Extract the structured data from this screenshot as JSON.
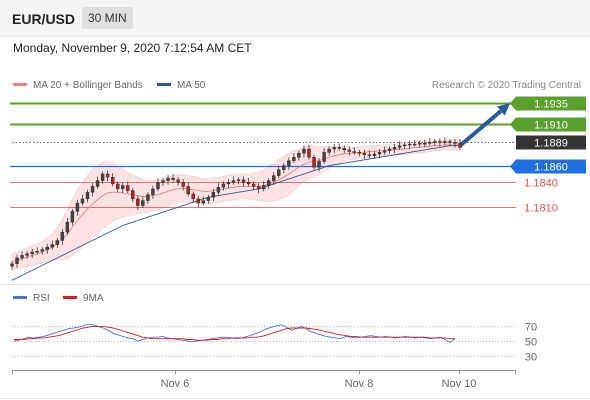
{
  "header": {
    "pair": "EUR/USD",
    "timeframe": "30 MIN"
  },
  "date_text": "Monday, November 9, 2020 7:12:54 AM CET",
  "legend": {
    "ma20": {
      "label": "MA 20 + Bollinger Bands",
      "color": "#f08080"
    },
    "ma50": {
      "label": "MA 50",
      "color": "#2b5a9a"
    }
  },
  "credit": "Research © 2020 Trading Central",
  "rsi_legend": {
    "rsi": "RSI",
    "ma9": "9MA"
  },
  "chart_data": {
    "type": "line",
    "price_range": [
      1.172,
      1.1945
    ],
    "current_price": {
      "value": 1.1889,
      "label": "1.1889"
    },
    "levels": [
      {
        "value": 1.1935,
        "label": "1.1935",
        "kind": "resistance",
        "color": "#5aa02c"
      },
      {
        "value": 1.191,
        "label": "1.1910",
        "kind": "resistance",
        "color": "#5aa02c"
      },
      {
        "value": 1.186,
        "label": "1.1860",
        "kind": "pivot",
        "color": "#1f6fe0"
      },
      {
        "value": 1.184,
        "label": "1.1840",
        "kind": "support",
        "color": "#e05050"
      },
      {
        "value": 1.181,
        "label": "1.1810",
        "kind": "support",
        "color": "#e05050"
      }
    ],
    "x_ticks": [
      "Nov 6",
      "Nov 8",
      "Nov 10"
    ],
    "close": [
      1.1742,
      1.1749,
      1.1752,
      1.1754,
      1.1756,
      1.1757,
      1.1759,
      1.1762,
      1.1765,
      1.177,
      1.178,
      1.1792,
      1.1805,
      1.1815,
      1.182,
      1.1828,
      1.1835,
      1.1842,
      1.185,
      1.1846,
      1.1838,
      1.1832,
      1.1836,
      1.183,
      1.182,
      1.1812,
      1.1818,
      1.1825,
      1.1832,
      1.184,
      1.1842,
      1.1845,
      1.1843,
      1.184,
      1.1835,
      1.1826,
      1.182,
      1.1815,
      1.1818,
      1.1822,
      1.1828,
      1.1834,
      1.1838,
      1.184,
      1.1842,
      1.1843,
      1.184,
      1.1838,
      1.1835,
      1.1832,
      1.1836,
      1.1842,
      1.1848,
      1.1855,
      1.186,
      1.1866,
      1.187,
      1.1875,
      1.188,
      1.187,
      1.1858,
      1.1865,
      1.1876,
      1.188,
      1.1882,
      1.1881,
      1.1879,
      1.1877,
      1.1876,
      1.1875,
      1.1873,
      1.1872,
      1.1874,
      1.1876,
      1.1878,
      1.188,
      1.1882,
      1.1884,
      1.1885,
      1.1886,
      1.1886,
      1.1887,
      1.1887,
      1.1888,
      1.1889,
      1.1888,
      1.1889,
      1.1888,
      1.1887,
      1.1882
    ],
    "ma20": [
      1.1744,
      1.1746,
      1.1748,
      1.175,
      1.1752,
      1.1754,
      1.1756,
      1.1759,
      1.1762,
      1.1766,
      1.1771,
      1.1778,
      1.1786,
      1.1794,
      1.1801,
      1.1808,
      1.1814,
      1.1819,
      1.1824,
      1.1827,
      1.1828,
      1.1828,
      1.1827,
      1.1826,
      1.1825,
      1.1824,
      1.1823,
      1.1823,
      1.1824,
      1.1825,
      1.1827,
      1.1829,
      1.1831,
      1.1832,
      1.1833,
      1.1832,
      1.1831,
      1.183,
      1.1829,
      1.1829,
      1.183,
      1.1831,
      1.1832,
      1.1833,
      1.1834,
      1.1835,
      1.1835,
      1.1835,
      1.1835,
      1.1835,
      1.1836,
      1.1838,
      1.184,
      1.1843,
      1.1846,
      1.185,
      1.1854,
      1.1858,
      1.1862,
      1.1864,
      1.1865,
      1.1866,
      1.1868,
      1.187,
      1.1872,
      1.1873,
      1.1874,
      1.1875,
      1.1875,
      1.1876,
      1.1876,
      1.1877,
      1.1877,
      1.1878,
      1.1878,
      1.1879,
      1.1879,
      1.188,
      1.188,
      1.1881,
      1.1882,
      1.1882,
      1.1883,
      1.1883,
      1.1884,
      1.1884,
      1.1885,
      1.1885,
      1.1885,
      1.1885
    ],
    "bb_width": [
      0.001,
      0.001,
      0.0011,
      0.0011,
      0.0012,
      0.0012,
      0.0013,
      0.0014,
      0.0016,
      0.0019,
      0.0024,
      0.003,
      0.0034,
      0.0037,
      0.0039,
      0.004,
      0.0041,
      0.0041,
      0.004,
      0.0038,
      0.0035,
      0.0032,
      0.0029,
      0.0026,
      0.0024,
      0.0022,
      0.002,
      0.0019,
      0.0018,
      0.0018,
      0.0017,
      0.0017,
      0.0017,
      0.0017,
      0.0016,
      0.0016,
      0.0016,
      0.0016,
      0.0015,
      0.0015,
      0.0015,
      0.0015,
      0.0015,
      0.0015,
      0.0015,
      0.0015,
      0.0015,
      0.0015,
      0.0016,
      0.0017,
      0.0019,
      0.0021,
      0.0023,
      0.0024,
      0.0025,
      0.0025,
      0.0024,
      0.0022,
      0.0021,
      0.002,
      0.0019,
      0.0017,
      0.0015,
      0.0013,
      0.0011,
      0.001,
      0.0009,
      0.0008,
      0.0007,
      0.0007,
      0.0007,
      0.0007,
      0.0007,
      0.0007,
      0.0007,
      0.0007,
      0.0007,
      0.0007,
      0.0007,
      0.0007,
      0.0007,
      0.0007,
      0.0007,
      0.0006,
      0.0006,
      0.0006,
      0.0006,
      0.0006,
      0.0006,
      0.0006
    ],
    "ma50": [
      1.1722,
      1.1725,
      1.1728,
      1.1731,
      1.1734,
      1.1737,
      1.174,
      1.1743,
      1.1746,
      1.1749,
      1.1752,
      1.1755,
      1.1758,
      1.1761,
      1.1764,
      1.1767,
      1.177,
      1.1773,
      1.1776,
      1.1779,
      1.1782,
      1.1785,
      1.1788,
      1.179,
      1.1792,
      1.1794,
      1.1796,
      1.1798,
      1.18,
      1.1802,
      1.1804,
      1.1806,
      1.1808,
      1.181,
      1.1812,
      1.1814,
      1.1816,
      1.1818,
      1.182,
      1.1822,
      1.1823,
      1.1824,
      1.1825,
      1.1826,
      1.1827,
      1.1828,
      1.1829,
      1.183,
      1.1831,
      1.1832,
      1.1834,
      1.1836,
      1.1838,
      1.184,
      1.1842,
      1.1844,
      1.1846,
      1.1848,
      1.185,
      1.1852,
      1.1854,
      1.1856,
      1.1858,
      1.186,
      1.1861,
      1.1862,
      1.1863,
      1.1864,
      1.1865,
      1.1866,
      1.1867,
      1.1868,
      1.1869,
      1.187,
      1.1871,
      1.1872,
      1.1873,
      1.1874,
      1.1875,
      1.1876,
      1.1877,
      1.1878,
      1.1879,
      1.188,
      1.1881,
      1.1882,
      1.1883,
      1.1884,
      1.1884,
      1.1885
    ],
    "projection": [
      1.1884,
      1.1935
    ],
    "rsi": {
      "range": [
        20,
        80
      ],
      "levels": [
        70,
        50,
        30
      ],
      "level_labels": [
        "70",
        "50",
        "30"
      ],
      "rsi": [
        50,
        51,
        53,
        55,
        54,
        55,
        56,
        58,
        60,
        62,
        64,
        66,
        67,
        68,
        70,
        72,
        71,
        69,
        67,
        64,
        60,
        58,
        56,
        54,
        53,
        50,
        52,
        54,
        55,
        55,
        56,
        54,
        53,
        52,
        51,
        50,
        49,
        50,
        51,
        52,
        53,
        54,
        55,
        55,
        54,
        53,
        54,
        56,
        58,
        60,
        63,
        66,
        68,
        70,
        71,
        68,
        64,
        66,
        69,
        66,
        62,
        60,
        58,
        56,
        55,
        54,
        53,
        56,
        55,
        54,
        55,
        56,
        57,
        56,
        55,
        56,
        55,
        54,
        55,
        56,
        55,
        54,
        55,
        54,
        53,
        54,
        55,
        52,
        48,
        53
      ],
      "ma9": [
        52,
        52,
        52,
        53,
        53,
        54,
        54,
        55,
        56,
        57,
        59,
        61,
        63,
        65,
        67,
        68,
        69,
        69,
        69,
        68,
        67,
        65,
        63,
        61,
        59,
        57,
        55,
        54,
        53,
        53,
        53,
        53,
        53,
        53,
        53,
        52,
        52,
        51,
        51,
        51,
        52,
        52,
        53,
        53,
        54,
        54,
        54,
        54,
        55,
        55,
        56,
        58,
        60,
        62,
        64,
        66,
        67,
        67,
        67,
        67,
        66,
        65,
        64,
        62,
        61,
        59,
        58,
        57,
        56,
        56,
        55,
        55,
        55,
        55,
        55,
        55,
        55,
        55,
        55,
        55,
        55,
        55,
        55,
        55,
        54,
        54,
        54,
        54,
        53,
        53
      ]
    }
  }
}
